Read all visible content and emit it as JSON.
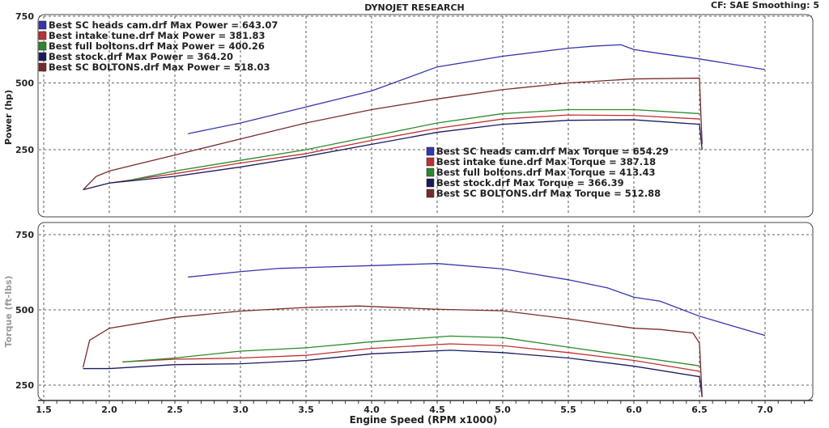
{
  "header": {
    "title": "DYNOJET RESEARCH",
    "settings": "CF: SAE  Smoothing: 5"
  },
  "chart_data": [
    {
      "type": "line",
      "ylabel": "Power (hp)",
      "xlabel": "Engine Speed (RPM x1000)",
      "xlim": [
        1.5,
        7.0
      ],
      "ylim": [
        170,
        760
      ],
      "yticks": [
        "750",
        "500",
        "250"
      ],
      "grid": true,
      "legend_position": "top-left",
      "series": [
        {
          "name": "Best SC heads cam.drf Max Power = 643.07",
          "color": "#3535b0",
          "x": [
            2.6,
            3.0,
            3.5,
            4.0,
            4.5,
            5.0,
            5.5,
            5.7,
            5.9,
            6.0,
            6.2,
            6.5,
            7.0
          ],
          "y": [
            310,
            350,
            410,
            470,
            560,
            600,
            630,
            638,
            643,
            625,
            610,
            590,
            550
          ]
        },
        {
          "name": "Best intake tune.drf Max Power = 381.83",
          "color": "#c03030",
          "x": [
            2.0,
            2.5,
            3.0,
            3.5,
            4.0,
            4.5,
            5.0,
            5.5,
            6.0,
            6.5
          ],
          "y": [
            125,
            160,
            200,
            235,
            285,
            330,
            365,
            380,
            378,
            365
          ]
        },
        {
          "name": "Best full boltons.drf Max Power = 400.26",
          "color": "#2a8a2a",
          "x": [
            2.1,
            2.5,
            3.0,
            3.5,
            4.0,
            4.5,
            5.0,
            5.5,
            6.0,
            6.5
          ],
          "y": [
            130,
            170,
            210,
            250,
            300,
            350,
            385,
            400,
            400,
            385
          ]
        },
        {
          "name": "Best stock.drf Max Power = 364.20",
          "color": "#1a1a60",
          "x": [
            1.8,
            2.0,
            2.5,
            3.0,
            3.5,
            4.0,
            4.5,
            5.0,
            5.5,
            6.0,
            6.5,
            6.52
          ],
          "y": [
            100,
            125,
            150,
            185,
            225,
            270,
            315,
            345,
            360,
            362,
            345,
            250
          ]
        },
        {
          "name": "Best SC BOLTONS.drf Max Power = 518.03",
          "color": "#7a2a2a",
          "x": [
            1.8,
            1.9,
            2.0,
            2.5,
            3.0,
            3.5,
            4.0,
            4.5,
            5.0,
            5.5,
            6.0,
            6.5,
            6.52
          ],
          "y": [
            100,
            150,
            170,
            230,
            290,
            350,
            400,
            440,
            475,
            500,
            515,
            518,
            270
          ]
        }
      ]
    },
    {
      "type": "line",
      "ylabel": "Torque (ft-lbs)",
      "xlabel": "Engine Speed (RPM x1000)",
      "xlim": [
        1.5,
        7.0
      ],
      "ylim": [
        190,
        760
      ],
      "yticks": [
        "750",
        "500",
        "250"
      ],
      "grid": true,
      "legend_position": "top-center",
      "series": [
        {
          "name": "Best SC heads cam.drf Max Torque = 654.29",
          "color": "#3535b0",
          "x": [
            2.6,
            3.0,
            3.3,
            4.0,
            4.5,
            5.0,
            5.5,
            5.8,
            6.0,
            6.2,
            6.5,
            7.0
          ],
          "y": [
            609,
            627,
            638,
            647,
            654,
            636,
            600,
            573,
            542,
            529,
            479,
            415
          ]
        },
        {
          "name": "Best intake tune.drf Max Torque = 387.18",
          "color": "#c03030",
          "x": [
            2.1,
            2.5,
            3.0,
            3.5,
            4.0,
            4.6,
            5.0,
            5.5,
            6.0,
            6.5
          ],
          "y": [
            327,
            336,
            340,
            349,
            372,
            387,
            381,
            358,
            332,
            296
          ]
        },
        {
          "name": "Best full boltons.drf Max Torque = 413.43",
          "color": "#2a8a2a",
          "x": [
            2.1,
            2.5,
            3.0,
            3.5,
            4.0,
            4.6,
            5.0,
            5.5,
            6.0,
            6.5
          ],
          "y": [
            327,
            340,
            363,
            374,
            394,
            413,
            408,
            376,
            345,
            314
          ]
        },
        {
          "name": "Best stock.drf Max Torque = 366.39",
          "color": "#1a1a60",
          "x": [
            1.8,
            2.0,
            2.5,
            3.0,
            3.5,
            4.0,
            4.6,
            5.0,
            5.5,
            6.0,
            6.5,
            6.52
          ],
          "y": [
            305,
            305,
            318,
            321,
            332,
            354,
            366,
            358,
            340,
            313,
            278,
            210
          ]
        },
        {
          "name": "Best SC BOLTONS.drf Max Torque = 512.88",
          "color": "#7a2a2a",
          "x": [
            1.8,
            1.85,
            2.0,
            2.5,
            3.0,
            3.5,
            3.9,
            4.5,
            5.0,
            5.5,
            6.0,
            6.2,
            6.45,
            6.5,
            6.52
          ],
          "y": [
            309,
            399,
            439,
            475,
            496,
            508,
            513,
            502,
            497,
            470,
            439,
            435,
            423,
            390,
            211
          ]
        }
      ]
    }
  ],
  "x_ticks": [
    "1.5",
    "2.0",
    "2.5",
    "3.0",
    "3.5",
    "4.0",
    "4.5",
    "5.0",
    "5.5",
    "6.0",
    "6.5",
    "7.0"
  ]
}
